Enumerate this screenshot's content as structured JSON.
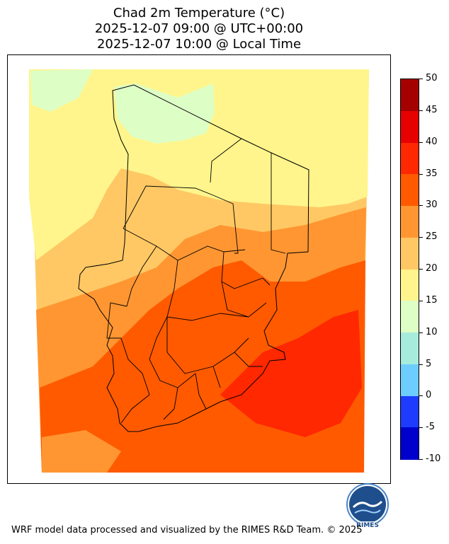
{
  "title": {
    "line1": "Chad 2m Temperature (°C)",
    "line2": "2025-12-07 09:00 @ UTC+00:00",
    "line3": "2025-12-07 10:00 @ Local Time"
  },
  "colorbar": {
    "ticks": [
      "50",
      "45",
      "40",
      "35",
      "30",
      "25",
      "20",
      "15",
      "10",
      "5",
      "0",
      "-5",
      "-10"
    ],
    "bins": [
      {
        "from": 45,
        "to": 50,
        "color": "#a50000"
      },
      {
        "from": 40,
        "to": 45,
        "color": "#e60000"
      },
      {
        "from": 35,
        "to": 40,
        "color": "#ff2800"
      },
      {
        "from": 30,
        "to": 35,
        "color": "#ff5a00"
      },
      {
        "from": 25,
        "to": 30,
        "color": "#ff9632"
      },
      {
        "from": 20,
        "to": 25,
        "color": "#ffc864"
      },
      {
        "from": 15,
        "to": 20,
        "color": "#fff58c"
      },
      {
        "from": 10,
        "to": 15,
        "color": "#ddffc6"
      },
      {
        "from": 5,
        "to": 10,
        "color": "#a6ecdc"
      },
      {
        "from": 0,
        "to": 5,
        "color": "#6dcdff"
      },
      {
        "from": -5,
        "to": 0,
        "color": "#1e3cff"
      },
      {
        "from": -10,
        "to": -5,
        "color": "#0000cd"
      }
    ]
  },
  "logo": {
    "text": "RIMES"
  },
  "footer": "WRF model data processed and visualized by the RIMES R&D Team. © 2025"
}
